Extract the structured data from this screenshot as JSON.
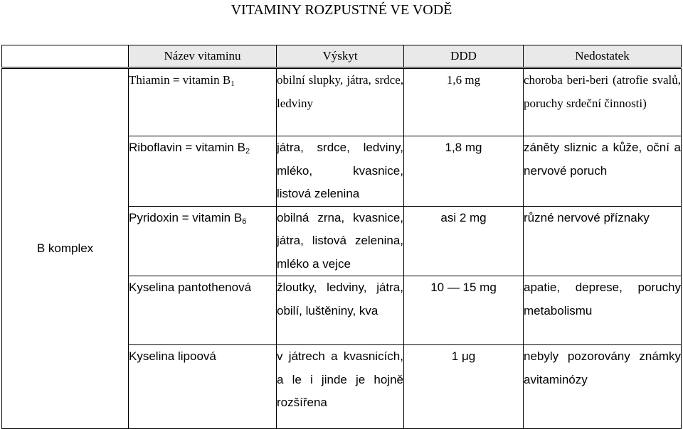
{
  "title": "VITAMINY ROZPUSTNÉ VE VODĚ",
  "headers": {
    "name": "Název vitaminu",
    "source": "Výskyt",
    "dose": "DDD",
    "deficiency": "Nedostatek"
  },
  "group_label": "B komplex",
  "rows": [
    {
      "name": "Thiamin = vitamin B",
      "name_sub": "1",
      "source": "obilní slupky, játra, srdce, ledviny",
      "dose": "1,6 mg",
      "deficiency": "choroba beri-beri (atrofie svalů, poruchy srdeční činnosti)"
    },
    {
      "name": "Riboflavin = vitamin B",
      "name_sub": "2",
      "source": "játra, srdce, ledviny, mléko, kvasnice, listová zelenina",
      "dose": "1,8 mg",
      "deficiency": "záněty sliznic a kůže, oční a nervové poruch"
    },
    {
      "name": "Pyridoxin = vitamin B",
      "name_sub": "6",
      "source": "obilná zrna, kvasnice, játra, listová zelenina, mléko a vejce",
      "dose": "asi 2 mg",
      "deficiency": "různé nervové příznaky"
    },
    {
      "name": "Kyselina pantothenová",
      "name_sub": "",
      "source": "žloutky, ledviny, játra, obilí, luštěniny, kva",
      "dose": "10 — 15 mg",
      "deficiency": "apatie, deprese, poruchy metabolismu"
    },
    {
      "name": "Kyselina lipoová",
      "name_sub": "",
      "source": "v játrech a kvasnicích, a le i jinde je hojně rozšířena",
      "dose": "1 μg",
      "deficiency": "nebyly pozorovány známky avitaminózy"
    }
  ]
}
